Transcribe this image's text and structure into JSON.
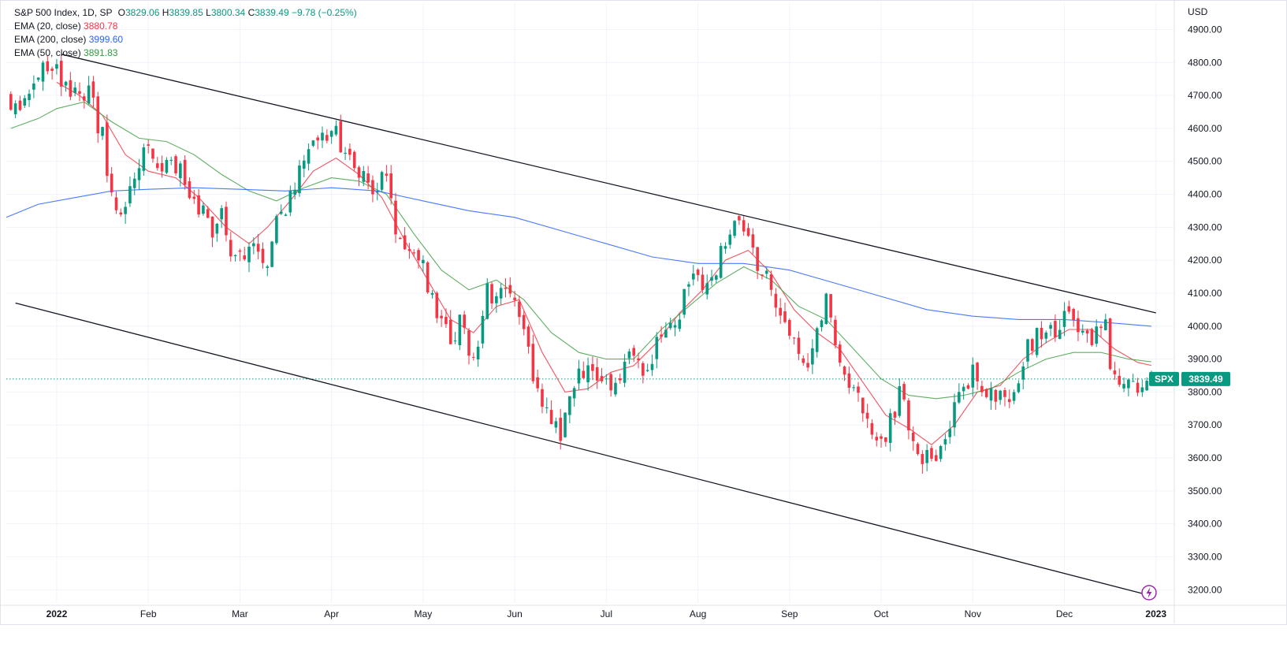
{
  "legend": {
    "symbol": "S&P 500 Index, 1D, SP",
    "open_label": "O",
    "open": "3829.06",
    "high_label": "H",
    "high": "3839.85",
    "low_label": "L",
    "low": "3800.34",
    "close_label": "C",
    "close": "3839.49",
    "change": "−9.78 (−0.25%)",
    "ema20_label": "EMA (20, close)",
    "ema20_value": "3880.78",
    "ema200_label": "EMA (200, close)",
    "ema200_value": "3999.60",
    "ema50_label": "EMA (50, close)",
    "ema50_value": "3891.83"
  },
  "colors": {
    "up": "#089981",
    "down": "#f23645",
    "ema20": "#f23645",
    "ema50": "#43a047",
    "ema200": "#2962ff",
    "trendline": "#131722",
    "last_price_line": "#089981",
    "grid": "#f0f3fa"
  },
  "price_badge": {
    "ticker": "SPX",
    "value": "3839.49"
  },
  "chart_data": {
    "type": "candlestick",
    "currency": "USD",
    "y_axis_side": "right",
    "ylim": [
      3160,
      4980
    ],
    "x_range": [
      -0.55,
      12.2
    ],
    "y_ticks": [
      "3200.00",
      "3300.00",
      "3400.00",
      "3500.00",
      "3600.00",
      "3700.00",
      "3800.00",
      "3900.00",
      "4000.00",
      "4100.00",
      "4200.00",
      "4300.00",
      "4400.00",
      "4500.00",
      "4600.00",
      "4700.00",
      "4800.00",
      "4900.00"
    ],
    "x_ticks": [
      {
        "label": "2022",
        "t": 0,
        "bold": true
      },
      {
        "label": "Feb",
        "t": 1
      },
      {
        "label": "Mar",
        "t": 2
      },
      {
        "label": "Apr",
        "t": 3
      },
      {
        "label": "May",
        "t": 4
      },
      {
        "label": "Jun",
        "t": 5
      },
      {
        "label": "Jul",
        "t": 6
      },
      {
        "label": "Aug",
        "t": 7
      },
      {
        "label": "Sep",
        "t": 8
      },
      {
        "label": "Oct",
        "t": 9
      },
      {
        "label": "Nov",
        "t": 10
      },
      {
        "label": "Dec",
        "t": 11
      },
      {
        "label": "2023",
        "t": 12,
        "bold": true
      }
    ],
    "last_price": 3839.49,
    "series": [
      {
        "name": "S&P 500 Index",
        "kind": "candles",
        "x_start": -0.5,
        "x_end": 11.95,
        "close_anchors": [
          [
            -0.5,
            4690
          ],
          [
            -0.45,
            4650
          ],
          [
            -0.35,
            4700
          ],
          [
            -0.2,
            4766
          ],
          [
            0,
            4797
          ],
          [
            0.1,
            4725
          ],
          [
            0.25,
            4680
          ],
          [
            0.35,
            4700
          ],
          [
            0.5,
            4580
          ],
          [
            0.6,
            4400
          ],
          [
            0.7,
            4350
          ],
          [
            0.85,
            4430
          ],
          [
            1,
            4550
          ],
          [
            1.1,
            4480
          ],
          [
            1.25,
            4500
          ],
          [
            1.45,
            4420
          ],
          [
            1.6,
            4340
          ],
          [
            1.7,
            4300
          ],
          [
            1.8,
            4350
          ],
          [
            1.9,
            4200
          ],
          [
            2,
            4230
          ],
          [
            2.15,
            4250
          ],
          [
            2.3,
            4210
          ],
          [
            2.4,
            4300
          ],
          [
            2.55,
            4400
          ],
          [
            2.75,
            4530
          ],
          [
            2.95,
            4590
          ],
          [
            3.05,
            4580
          ],
          [
            3.15,
            4520
          ],
          [
            3.3,
            4480
          ],
          [
            3.45,
            4420
          ],
          [
            3.6,
            4470
          ],
          [
            3.7,
            4290
          ],
          [
            3.85,
            4220
          ],
          [
            4,
            4180
          ],
          [
            4.15,
            4050
          ],
          [
            4.3,
            3950
          ],
          [
            4.4,
            4000
          ],
          [
            4.55,
            3900
          ],
          [
            4.7,
            4100
          ],
          [
            4.8,
            4100
          ],
          [
            4.95,
            4120
          ],
          [
            5.05,
            4060
          ],
          [
            5.1,
            3960
          ],
          [
            5.25,
            3820
          ],
          [
            5.4,
            3700
          ],
          [
            5.5,
            3660
          ],
          [
            5.65,
            3830
          ],
          [
            5.8,
            3880
          ],
          [
            6,
            3820
          ],
          [
            6.1,
            3830
          ],
          [
            6.25,
            3900
          ],
          [
            6.4,
            3860
          ],
          [
            6.55,
            3950
          ],
          [
            6.65,
            4020
          ],
          [
            6.75,
            4020
          ],
          [
            6.9,
            4120
          ],
          [
            7,
            4130
          ],
          [
            7.15,
            4150
          ],
          [
            7.3,
            4240
          ],
          [
            7.4,
            4290
          ],
          [
            7.5,
            4300
          ],
          [
            7.6,
            4230
          ],
          [
            7.75,
            4140
          ],
          [
            7.9,
            4060
          ],
          [
            8,
            4000
          ],
          [
            8.1,
            3930
          ],
          [
            8.2,
            3900
          ],
          [
            8.4,
            4080
          ],
          [
            8.5,
            3950
          ],
          [
            8.6,
            3870
          ],
          [
            8.7,
            3800
          ],
          [
            8.85,
            3700
          ],
          [
            9,
            3640
          ],
          [
            9.1,
            3720
          ],
          [
            9.2,
            3790
          ],
          [
            9.35,
            3660
          ],
          [
            9.45,
            3600
          ],
          [
            9.55,
            3590
          ],
          [
            9.65,
            3660
          ],
          [
            9.8,
            3740
          ],
          [
            9.9,
            3800
          ],
          [
            10,
            3870
          ],
          [
            10.1,
            3820
          ],
          [
            10.25,
            3790
          ],
          [
            10.4,
            3780
          ],
          [
            10.55,
            3900
          ],
          [
            10.7,
            3980
          ],
          [
            10.8,
            4010
          ],
          [
            10.95,
            3990
          ],
          [
            11,
            4080
          ],
          [
            11.1,
            4020
          ],
          [
            11.25,
            3960
          ],
          [
            11.35,
            3990
          ],
          [
            11.45,
            3990
          ],
          [
            11.5,
            3900
          ],
          [
            11.6,
            3840
          ],
          [
            11.7,
            3820
          ],
          [
            11.8,
            3830
          ],
          [
            11.9,
            3825
          ],
          [
            11.95,
            3839.49
          ]
        ]
      },
      {
        "name": "EMA (20, close)",
        "kind": "line",
        "color_key": "ema20",
        "points": [
          [
            0,
            4740
          ],
          [
            0.25,
            4700
          ],
          [
            0.5,
            4640
          ],
          [
            0.75,
            4520
          ],
          [
            1,
            4470
          ],
          [
            1.3,
            4450
          ],
          [
            1.55,
            4390
          ],
          [
            1.85,
            4300
          ],
          [
            2.1,
            4250
          ],
          [
            2.3,
            4300
          ],
          [
            2.55,
            4380
          ],
          [
            2.8,
            4470
          ],
          [
            3.05,
            4510
          ],
          [
            3.3,
            4460
          ],
          [
            3.55,
            4390
          ],
          [
            3.8,
            4260
          ],
          [
            4.05,
            4140
          ],
          [
            4.3,
            4020
          ],
          [
            4.55,
            3980
          ],
          [
            4.8,
            4060
          ],
          [
            5.05,
            4080
          ],
          [
            5.3,
            3920
          ],
          [
            5.55,
            3800
          ],
          [
            5.8,
            3810
          ],
          [
            6.05,
            3860
          ],
          [
            6.3,
            3880
          ],
          [
            6.55,
            3950
          ],
          [
            6.8,
            4040
          ],
          [
            7.05,
            4110
          ],
          [
            7.3,
            4200
          ],
          [
            7.55,
            4230
          ],
          [
            7.8,
            4160
          ],
          [
            8.05,
            4050
          ],
          [
            8.3,
            3980
          ],
          [
            8.55,
            3930
          ],
          [
            8.8,
            3830
          ],
          [
            9.05,
            3730
          ],
          [
            9.3,
            3690
          ],
          [
            9.55,
            3640
          ],
          [
            9.8,
            3700
          ],
          [
            10.05,
            3800
          ],
          [
            10.3,
            3820
          ],
          [
            10.55,
            3900
          ],
          [
            10.8,
            3950
          ],
          [
            11.05,
            3990
          ],
          [
            11.3,
            3990
          ],
          [
            11.55,
            3930
          ],
          [
            11.8,
            3890
          ],
          [
            11.95,
            3880.78
          ]
        ]
      },
      {
        "name": "EMA (50, close)",
        "kind": "line",
        "color_key": "ema50",
        "points": [
          [
            -0.5,
            4600
          ],
          [
            -0.2,
            4630
          ],
          [
            0,
            4660
          ],
          [
            0.3,
            4680
          ],
          [
            0.6,
            4620
          ],
          [
            0.9,
            4570
          ],
          [
            1.2,
            4560
          ],
          [
            1.5,
            4520
          ],
          [
            1.8,
            4460
          ],
          [
            2.1,
            4410
          ],
          [
            2.4,
            4380
          ],
          [
            2.7,
            4420
          ],
          [
            3.0,
            4450
          ],
          [
            3.3,
            4440
          ],
          [
            3.6,
            4400
          ],
          [
            3.9,
            4280
          ],
          [
            4.2,
            4170
          ],
          [
            4.5,
            4110
          ],
          [
            4.8,
            4140
          ],
          [
            5.1,
            4080
          ],
          [
            5.4,
            3980
          ],
          [
            5.7,
            3920
          ],
          [
            6.0,
            3900
          ],
          [
            6.3,
            3900
          ],
          [
            6.6,
            3990
          ],
          [
            6.9,
            4060
          ],
          [
            7.2,
            4130
          ],
          [
            7.5,
            4180
          ],
          [
            7.8,
            4140
          ],
          [
            8.1,
            4060
          ],
          [
            8.4,
            4020
          ],
          [
            8.7,
            3930
          ],
          [
            9.0,
            3840
          ],
          [
            9.3,
            3790
          ],
          [
            9.6,
            3780
          ],
          [
            9.9,
            3790
          ],
          [
            10.2,
            3810
          ],
          [
            10.5,
            3860
          ],
          [
            10.8,
            3900
          ],
          [
            11.1,
            3920
          ],
          [
            11.4,
            3920
          ],
          [
            11.7,
            3900
          ],
          [
            11.95,
            3891.83
          ]
        ]
      },
      {
        "name": "EMA (200, close)",
        "kind": "line",
        "color_key": "ema200",
        "points": [
          [
            -0.55,
            4330
          ],
          [
            -0.2,
            4370
          ],
          [
            0.2,
            4390
          ],
          [
            0.6,
            4410
          ],
          [
            1,
            4415
          ],
          [
            1.5,
            4420
          ],
          [
            2,
            4415
          ],
          [
            2.5,
            4410
          ],
          [
            3,
            4420
          ],
          [
            3.5,
            4410
          ],
          [
            4,
            4380
          ],
          [
            4.5,
            4350
          ],
          [
            5,
            4330
          ],
          [
            5.5,
            4290
          ],
          [
            6,
            4250
          ],
          [
            6.5,
            4210
          ],
          [
            7,
            4190
          ],
          [
            7.5,
            4190
          ],
          [
            8,
            4170
          ],
          [
            8.5,
            4130
          ],
          [
            9,
            4090
          ],
          [
            9.5,
            4050
          ],
          [
            10,
            4030
          ],
          [
            10.5,
            4020
          ],
          [
            11,
            4020
          ],
          [
            11.5,
            4010
          ],
          [
            11.95,
            3999.6
          ]
        ]
      },
      {
        "name": "",
        "kind": "trendline",
        "points": [
          [
            0.05,
            4825
          ],
          [
            12.0,
            4040
          ]
        ]
      },
      {
        "name": "",
        "kind": "trendline",
        "points": [
          [
            -0.45,
            4070
          ],
          [
            11.9,
            3185
          ]
        ]
      }
    ]
  }
}
